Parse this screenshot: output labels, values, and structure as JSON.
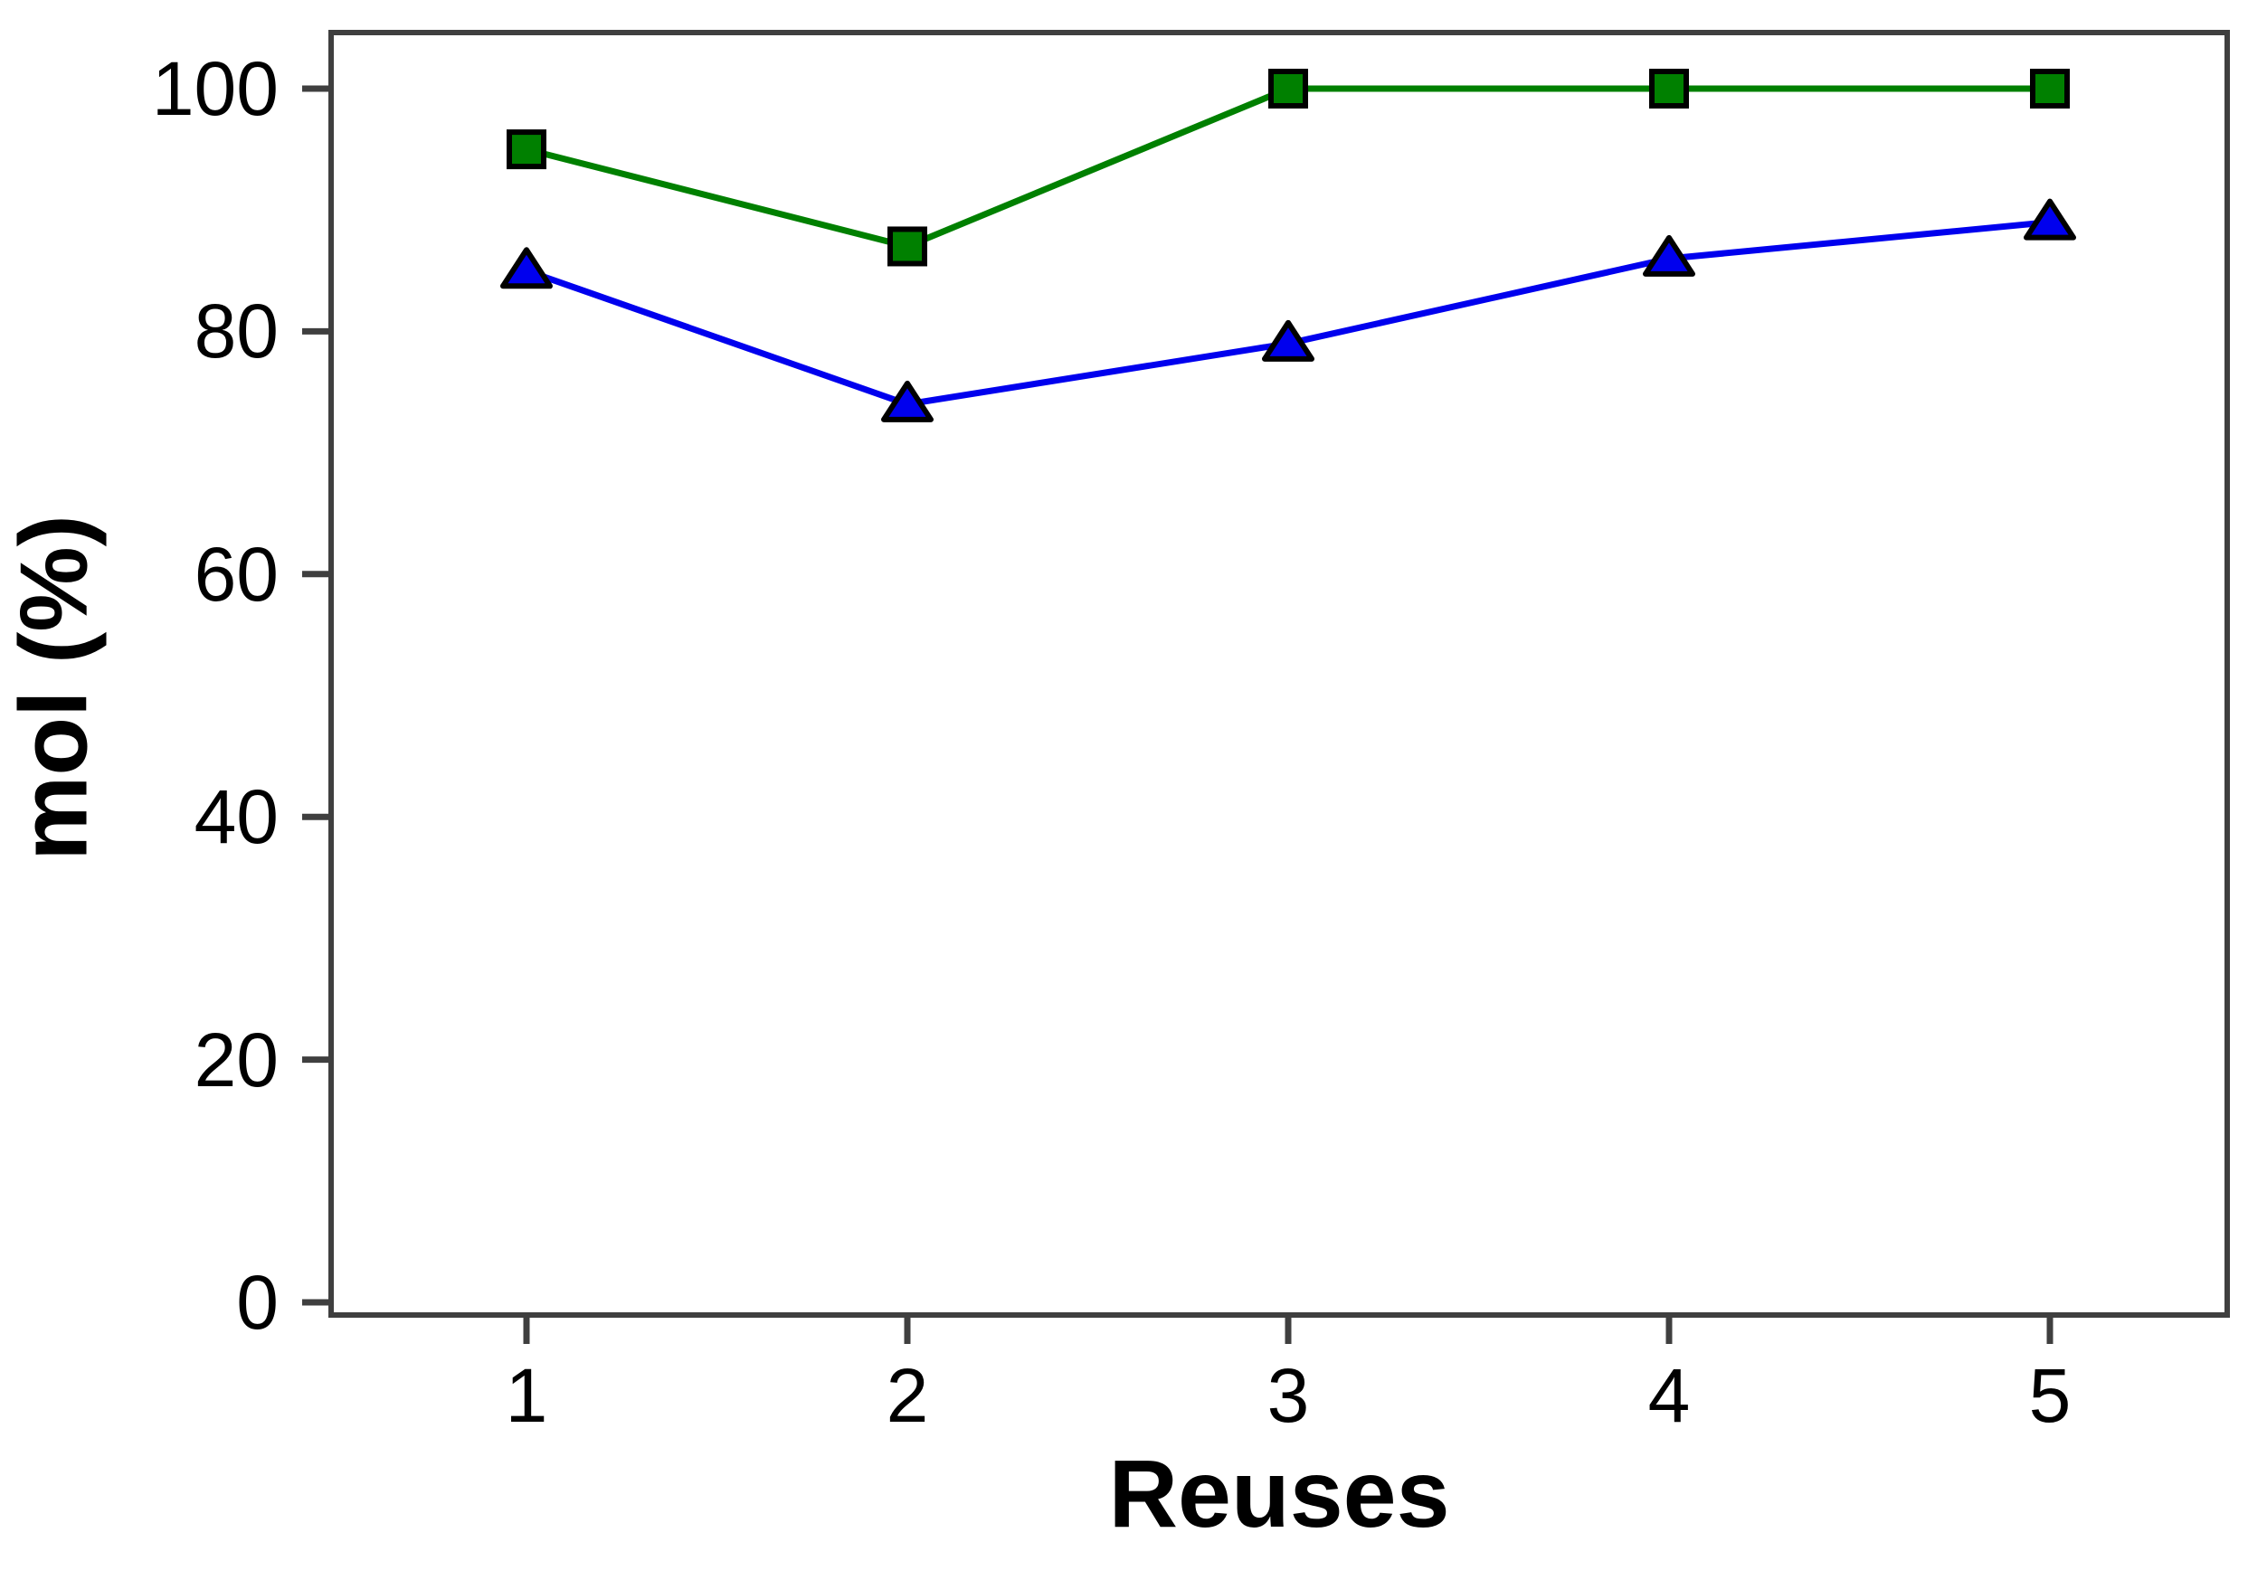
{
  "figure": {
    "background": "#ffffff",
    "frame_color": "#3f3f3f",
    "text_color": "#000000"
  },
  "chart_data": {
    "type": "line",
    "title": "",
    "xlabel": "Reuses",
    "ylabel": "mol (%)",
    "x": [
      1,
      2,
      3,
      4,
      5
    ],
    "series": [
      {
        "name": "green-squares",
        "marker": "square",
        "color": "#008000",
        "marker_fill": "#008000",
        "values": [
          95,
          87,
          100,
          100,
          100
        ]
      },
      {
        "name": "blue-triangles",
        "marker": "triangle",
        "color": "#0000EE",
        "marker_fill": "#0000EE",
        "values": [
          85,
          74,
          79,
          86,
          89
        ]
      }
    ],
    "marker_edge_color": "#000000",
    "xticks": [
      "1",
      "2",
      "3",
      "4",
      "5"
    ],
    "xtick_values": [
      1,
      2,
      3,
      4,
      5
    ],
    "yticks": [
      "100",
      "80",
      "60",
      "40",
      "20",
      "0"
    ],
    "ytick_values": [
      100,
      80,
      60,
      40,
      20,
      0
    ],
    "xlim": [
      0.5,
      5.5
    ],
    "ylim": [
      0,
      104.6
    ],
    "grid": false,
    "legend": null
  }
}
